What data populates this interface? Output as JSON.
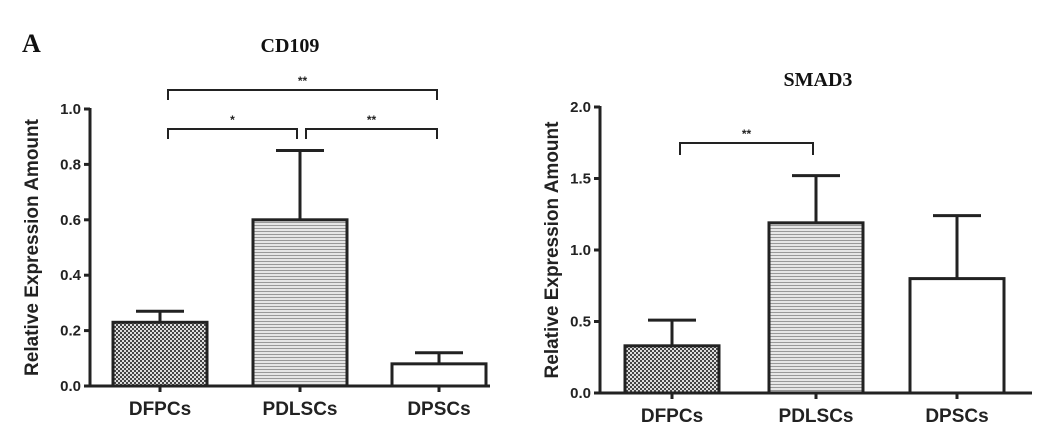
{
  "panel_label": "A",
  "chart_data": [
    {
      "type": "bar",
      "title": "CD109",
      "xlabel": "",
      "ylabel": "Relative Expression Amount",
      "categories": [
        "DFPCs",
        "PDLSCs",
        "DPSCs"
      ],
      "values": [
        0.23,
        0.6,
        0.08
      ],
      "error_upper": [
        0.27,
        0.85,
        0.12
      ],
      "patterns": [
        "checker",
        "hlines",
        "none"
      ],
      "ylim": [
        0,
        1.0
      ],
      "yticks": [
        "0.0",
        "0.2",
        "0.4",
        "0.6",
        "0.8",
        "1.0"
      ],
      "significance": [
        {
          "from": 0,
          "to": 1,
          "label": "*"
        },
        {
          "from": 1,
          "to": 2,
          "label": "**"
        },
        {
          "from": 0,
          "to": 2,
          "label": "**"
        }
      ]
    },
    {
      "type": "bar",
      "title": "SMAD3",
      "xlabel": "",
      "ylabel": "Relative Expression Amount",
      "categories": [
        "DFPCs",
        "PDLSCs",
        "DPSCs"
      ],
      "values": [
        0.33,
        1.19,
        0.8
      ],
      "error_upper": [
        0.51,
        1.52,
        1.24
      ],
      "patterns": [
        "checker",
        "hlines",
        "none"
      ],
      "ylim": [
        0,
        2.0
      ],
      "yticks": [
        "0.0",
        "0.5",
        "1.0",
        "1.5",
        "2.0"
      ],
      "significance": [
        {
          "from": 0,
          "to": 1,
          "label": "**"
        }
      ]
    }
  ]
}
